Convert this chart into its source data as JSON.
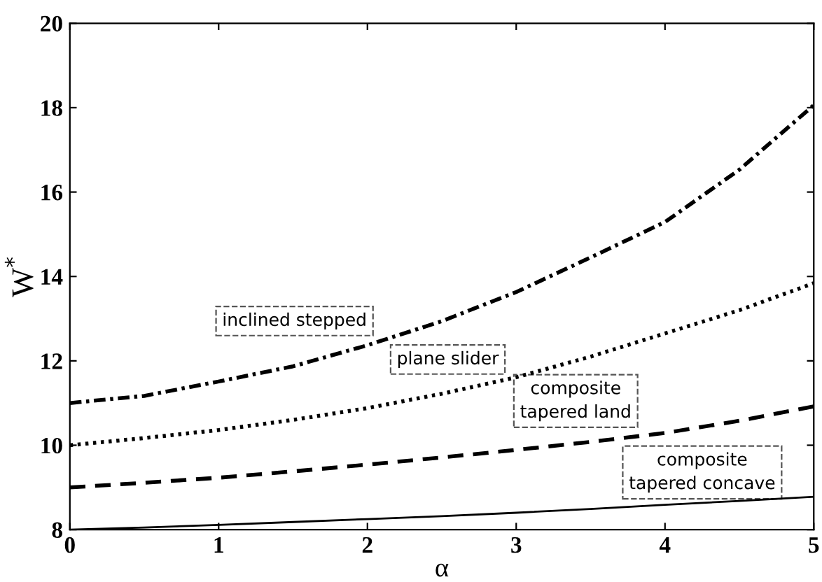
{
  "chart_data": {
    "type": "line",
    "xlabel": "α",
    "ylabel": "W$^{*}$",
    "x": [
      0,
      0.5,
      1,
      1.5,
      2,
      2.5,
      3,
      3.5,
      4,
      4.5,
      5
    ],
    "series": [
      {
        "color": "#000000",
        "line_style": "dashdot",
        "values": [
          11,
          11.17,
          11.51,
          11.87,
          12.37,
          12.94,
          13.63,
          14.45,
          15.29,
          16.53,
          18.06
        ]
      },
      {
        "color": "#000000",
        "line_style": "dotted",
        "values": [
          10,
          10.17,
          10.36,
          10.6,
          10.88,
          11.22,
          11.61,
          12.1,
          12.65,
          13.2,
          13.84
        ]
      },
      {
        "color": "#000000",
        "line_style": "dashed",
        "values": [
          9,
          9.11,
          9.23,
          9.38,
          9.54,
          9.71,
          9.89,
          10.08,
          10.29,
          10.58,
          10.92
        ]
      },
      {
        "color": "#000000",
        "line_style": "solid",
        "values": [
          8,
          8.05,
          8.11,
          8.18,
          8.25,
          8.32,
          8.4,
          8.49,
          8.59,
          8.68,
          8.78
        ]
      }
    ],
    "xlim": [
      0,
      5
    ],
    "ylim": [
      8,
      20
    ],
    "xticks": [
      0,
      1,
      2,
      3,
      4,
      5
    ],
    "yticks": [
      8,
      10,
      12,
      14,
      16,
      18,
      20
    ],
    "grid": false,
    "legend": false,
    "marker": "none",
    "annotations": [
      "inclined stepped",
      "plane slider",
      "composite\ntapered land",
      "composite\ntapered concave"
    ]
  }
}
